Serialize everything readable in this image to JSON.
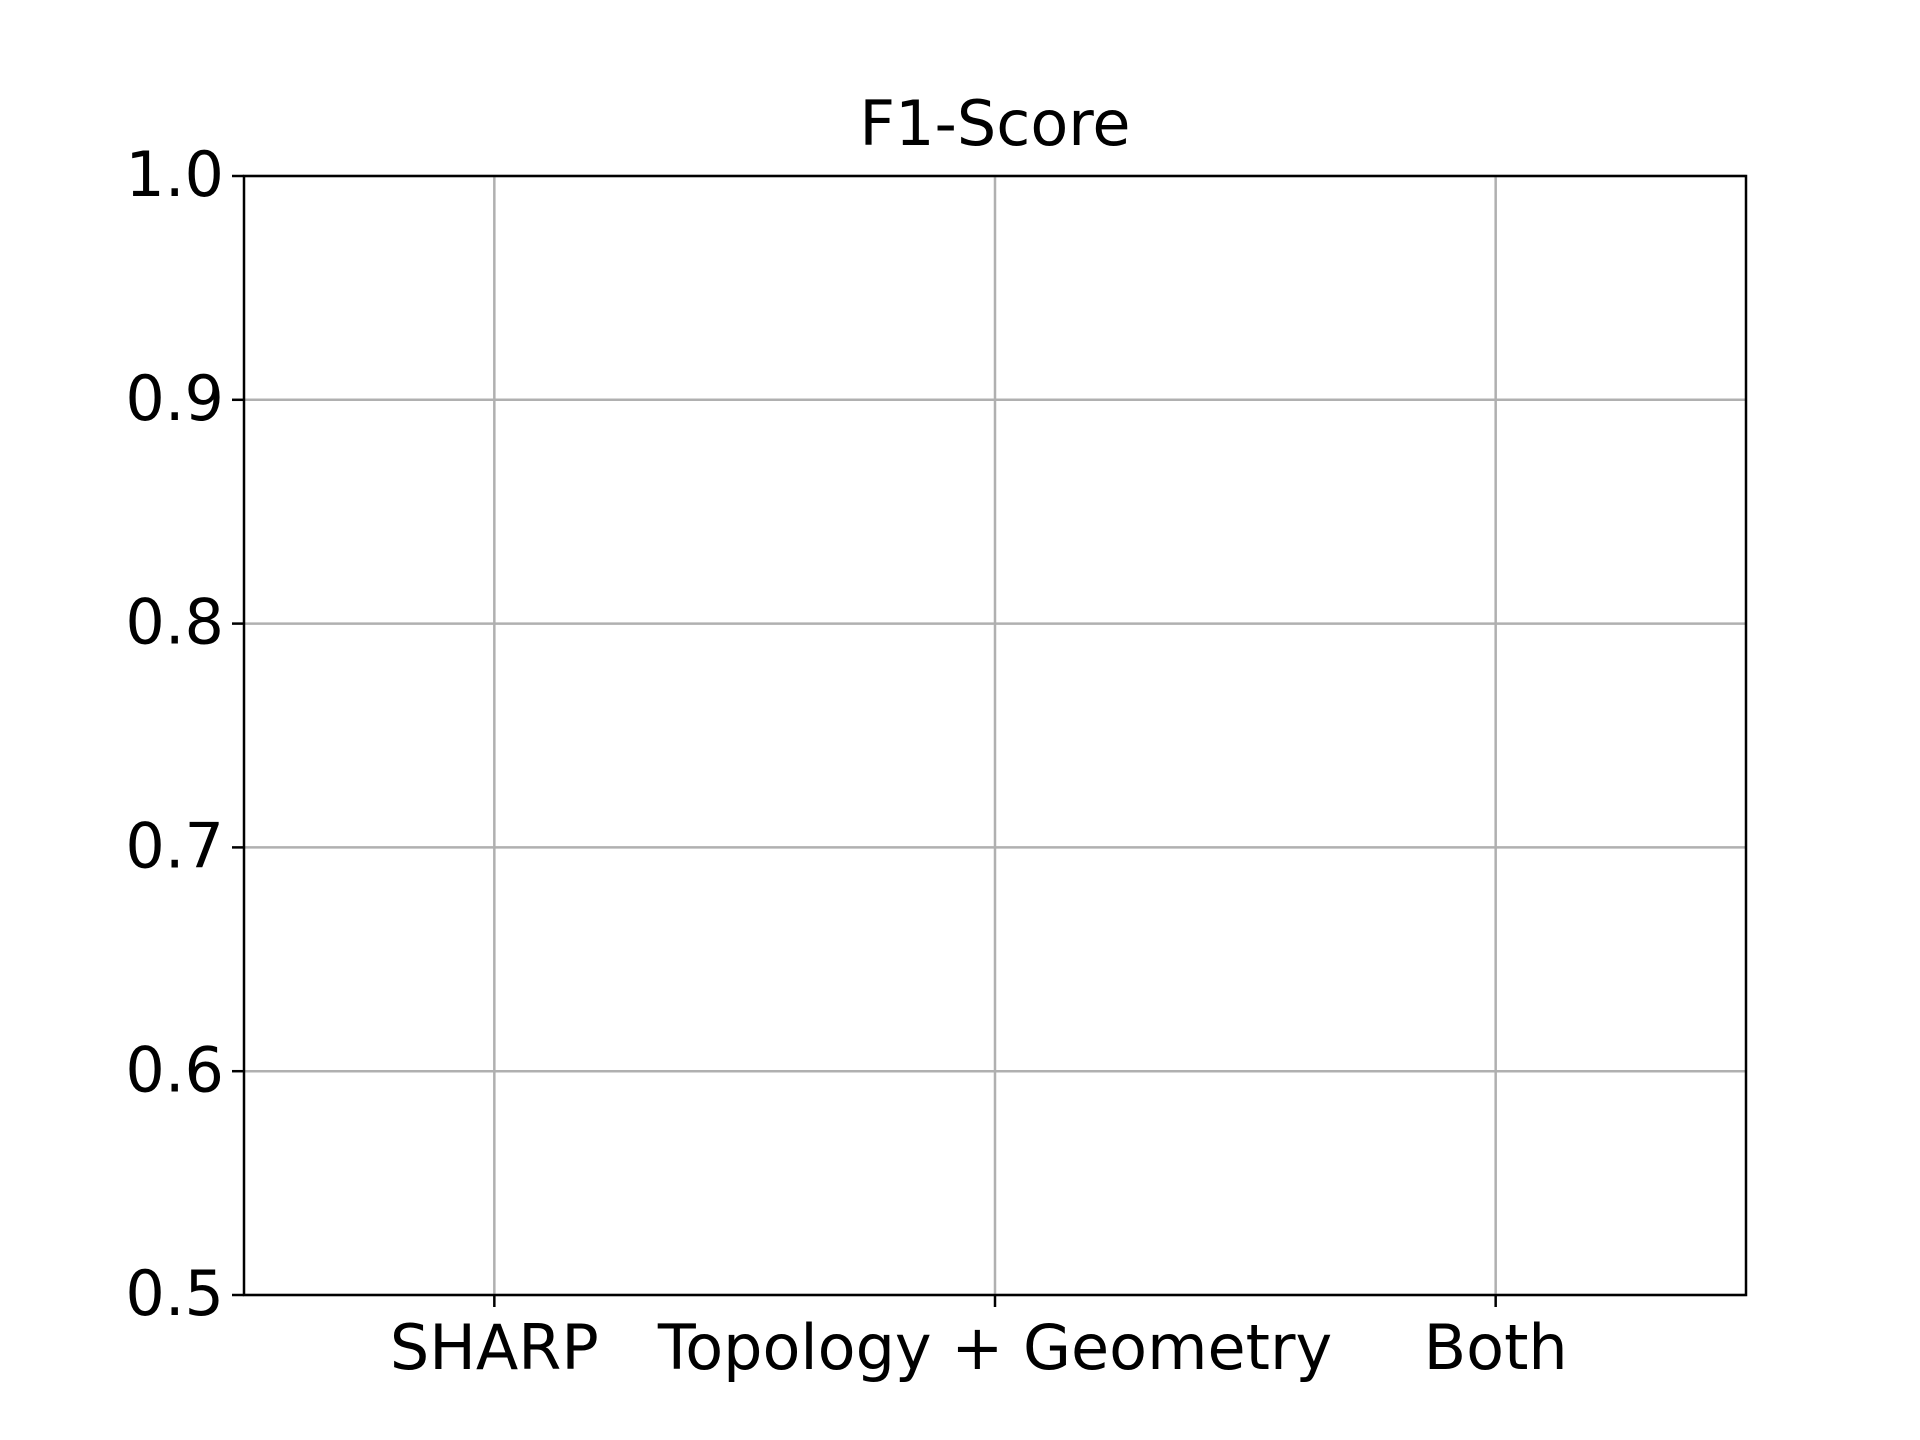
{
  "chart_data": {
    "type": "bar",
    "title": "F1-Score",
    "categories": [
      "SHARP",
      "Topology + Geometry",
      "Both"
    ],
    "ylim": [
      0.5,
      1.0
    ],
    "yticks": [
      0.5,
      0.6,
      0.7,
      0.8,
      0.9,
      {
        "value": 1.0,
        "label": "1.0"
      }
    ],
    "grid": true
  }
}
